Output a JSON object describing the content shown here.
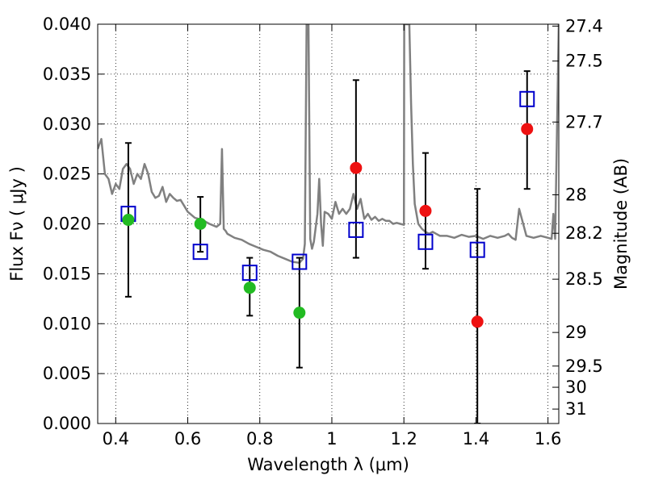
{
  "chart_data": {
    "type": "scatter",
    "xlabel": "Wavelength  λ (μm)",
    "ylabel": "Flux  Fν  ( μJy )",
    "y2label": "Magnitude (AB)",
    "xlim": [
      0.35,
      1.63
    ],
    "ylim": [
      0.0,
      0.04
    ],
    "grid": true,
    "x_ticks": [
      0.4,
      0.6,
      0.8,
      1.0,
      1.2,
      1.4,
      1.6
    ],
    "x_tick_labels": [
      "0.4",
      "0.6",
      "0.8",
      "1",
      "1.2",
      "1.4",
      "1.6"
    ],
    "y_ticks": [
      0.0,
      0.005,
      0.01,
      0.015,
      0.02,
      0.025,
      0.03,
      0.035,
      0.04
    ],
    "y_tick_labels": [
      "0.000",
      "0.005",
      "0.010",
      "0.015",
      "0.020",
      "0.025",
      "0.030",
      "0.035",
      "0.040"
    ],
    "mag_ticks": [
      27.4,
      27.5,
      27.7,
      28,
      28.2,
      28.5,
      29,
      29.5,
      30,
      31
    ],
    "mag_tick_labels": [
      "27.4",
      "27.5",
      "27.7",
      "28",
      "28.2",
      "28.5",
      "29",
      "29.5",
      "30",
      "31"
    ],
    "colors": {
      "model": "#808080",
      "green": "#22bb22",
      "red": "#ee1111",
      "square": "#0000cc",
      "errorbar": "#000000"
    },
    "model_spectrum": {
      "x": [
        0.35,
        0.36,
        0.37,
        0.38,
        0.39,
        0.4,
        0.41,
        0.42,
        0.43,
        0.44,
        0.45,
        0.46,
        0.47,
        0.48,
        0.49,
        0.5,
        0.51,
        0.52,
        0.53,
        0.54,
        0.55,
        0.56,
        0.57,
        0.58,
        0.59,
        0.6,
        0.62,
        0.64,
        0.66,
        0.68,
        0.69,
        0.695,
        0.7,
        0.705,
        0.71,
        0.73,
        0.75,
        0.77,
        0.79,
        0.81,
        0.83,
        0.85,
        0.87,
        0.89,
        0.91,
        0.92,
        0.925,
        0.93,
        0.935,
        0.94,
        0.945,
        0.95,
        0.96,
        0.965,
        0.97,
        0.975,
        0.98,
        0.99,
        1.0,
        1.01,
        1.02,
        1.03,
        1.04,
        1.05,
        1.06,
        1.07,
        1.08,
        1.09,
        1.1,
        1.11,
        1.12,
        1.13,
        1.14,
        1.15,
        1.16,
        1.17,
        1.18,
        1.19,
        1.2,
        1.201,
        1.205,
        1.21,
        1.215,
        1.22,
        1.225,
        1.23,
        1.24,
        1.25,
        1.26,
        1.27,
        1.28,
        1.29,
        1.3,
        1.32,
        1.34,
        1.36,
        1.38,
        1.4,
        1.42,
        1.44,
        1.46,
        1.48,
        1.49,
        1.5,
        1.51,
        1.52,
        1.54,
        1.56,
        1.58,
        1.6,
        1.61,
        1.615,
        1.62,
        1.63
      ],
      "y": [
        0.0275,
        0.0285,
        0.025,
        0.0245,
        0.023,
        0.024,
        0.0235,
        0.0255,
        0.026,
        0.0255,
        0.024,
        0.025,
        0.0245,
        0.026,
        0.025,
        0.0232,
        0.0226,
        0.0228,
        0.0237,
        0.0222,
        0.023,
        0.0226,
        0.0223,
        0.0224,
        0.0218,
        0.0212,
        0.0206,
        0.0204,
        0.02,
        0.0197,
        0.02,
        0.0275,
        0.0195,
        0.0193,
        0.019,
        0.0186,
        0.0184,
        0.018,
        0.0177,
        0.0174,
        0.0172,
        0.0168,
        0.0165,
        0.0162,
        0.0161,
        0.0165,
        0.018,
        0.04,
        0.04,
        0.0185,
        0.0175,
        0.0182,
        0.021,
        0.0245,
        0.02,
        0.0178,
        0.0212,
        0.021,
        0.0205,
        0.0222,
        0.021,
        0.0215,
        0.021,
        0.0215,
        0.023,
        0.0215,
        0.0225,
        0.0205,
        0.021,
        0.0204,
        0.0207,
        0.0203,
        0.0205,
        0.0203,
        0.0203,
        0.02,
        0.0201,
        0.02,
        0.0199,
        0.04,
        0.04,
        0.04,
        0.04,
        0.032,
        0.026,
        0.022,
        0.02,
        0.0195,
        0.0192,
        0.019,
        0.0192,
        0.019,
        0.0188,
        0.0188,
        0.0186,
        0.0189,
        0.0187,
        0.0188,
        0.0185,
        0.0188,
        0.0186,
        0.0188,
        0.019,
        0.0186,
        0.0184,
        0.0215,
        0.0188,
        0.0186,
        0.0188,
        0.0186,
        0.0185,
        0.021,
        0.0185,
        0.04
      ]
    },
    "series": [
      {
        "marker": "circle",
        "color_key": "green",
        "x": [
          0.435,
          0.635,
          0.772,
          0.91
        ],
        "y": [
          0.0204,
          0.02,
          0.0136,
          0.0111
        ],
        "yerr_low": [
          0.0127,
          null,
          0.0108,
          0.0056
        ],
        "yerr_high": [
          0.0281,
          null,
          0.0166,
          0.0166
        ]
      },
      {
        "marker": "circle",
        "color_key": "red",
        "x": [
          1.067,
          1.26,
          1.404,
          1.542
        ],
        "y": [
          0.0256,
          0.0213,
          0.0102,
          0.0295
        ],
        "yerr_low": [
          0.0166,
          0.0155,
          0.0,
          0.0235
        ],
        "yerr_high": [
          0.0344,
          0.0271,
          0.0235,
          0.0353
        ]
      },
      {
        "marker": "square",
        "color_key": "square",
        "x": [
          0.435,
          0.635,
          0.772,
          0.91,
          1.067,
          1.26,
          1.404,
          1.542
        ],
        "y": [
          0.021,
          0.0172,
          0.0151,
          0.0162,
          0.0194,
          0.0182,
          0.0174,
          0.0325
        ]
      }
    ],
    "errorbars": [
      {
        "x": 0.635,
        "low": 0.0172,
        "high": 0.0227
      }
    ]
  }
}
